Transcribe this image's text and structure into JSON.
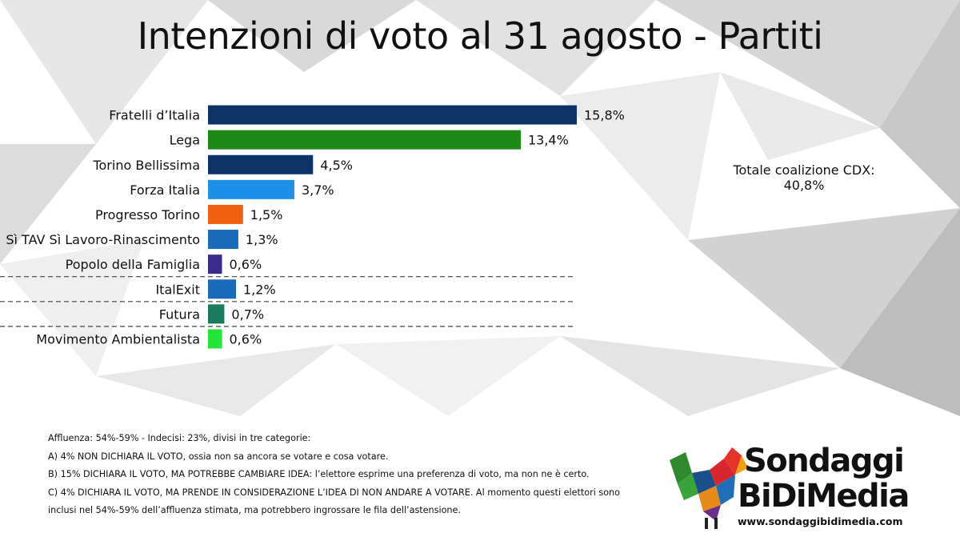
{
  "title": "Intenzioni di voto al 31 agosto - Partiti",
  "total_label": "Totale coalizione CDX:",
  "total_value": "40,8%",
  "colors": {
    "navy": "#0c3266",
    "green": "#1e8a16",
    "sky": "#1e90e8",
    "orange": "#f06010",
    "blue": "#1a6cba",
    "purple": "#3a2c8a",
    "teal": "#1a7a5e",
    "lime": "#22e43a"
  },
  "chart_data": {
    "type": "bar",
    "orientation": "horizontal",
    "categories": [
      "Fratelli d’Italia",
      "Lega",
      "Torino Bellissima",
      "Forza Italia",
      "Progresso Torino",
      "Sì TAV Sì Lavoro-Rinascimento",
      "Popolo della Famiglia",
      "ItalExit",
      "Futura",
      "Movimento Ambientalista"
    ],
    "values": [
      15.8,
      13.4,
      4.5,
      3.7,
      1.5,
      1.3,
      0.6,
      1.2,
      0.7,
      0.6
    ],
    "value_labels": [
      "15,8%",
      "13,4%",
      "4,5%",
      "3,7%",
      "1,5%",
      "1,3%",
      "0,6%",
      "1,2%",
      "0,7%",
      "0,6%"
    ],
    "bar_colors": [
      "#0c3266",
      "#1e8a16",
      "#0c3266",
      "#1e90e8",
      "#f06010",
      "#1a6cba",
      "#3a2c8a",
      "#1a6cba",
      "#1a7a5e",
      "#22e43a"
    ],
    "separators_after": [
      "Popolo della Famiglia",
      "ItalExit",
      "Futura"
    ],
    "xlabel": "",
    "ylabel": "",
    "grid": false
  },
  "notes": {
    "header": "Affluenza: 54%-59% - Indecisi: 23%, divisi in tre categorie:",
    "a": "A) 4% NON DICHIARA IL VOTO, ossia non sa ancora se votare e cosa votare.",
    "b": "B) 15% DICHIARA IL VOTO, MA POTREBBE CAMBIARE IDEA: l’elettore esprime una preferenza di voto, ma non ne è certo.",
    "c": "C) 4% DICHIARA IL VOTO, MA PRENDE IN CONSIDERAZIONE L’IDEA DI NON ANDARE A VOTARE. Al momento questi elettori sono inclusi nel 54%-59% dell’affluenza stimata, ma potrebbero ingrossare le fila dell’astensione."
  },
  "brand": {
    "line1": "Sondaggi",
    "line2": "BiDiMedia",
    "url": "www.sondaggibidimedia.com"
  }
}
